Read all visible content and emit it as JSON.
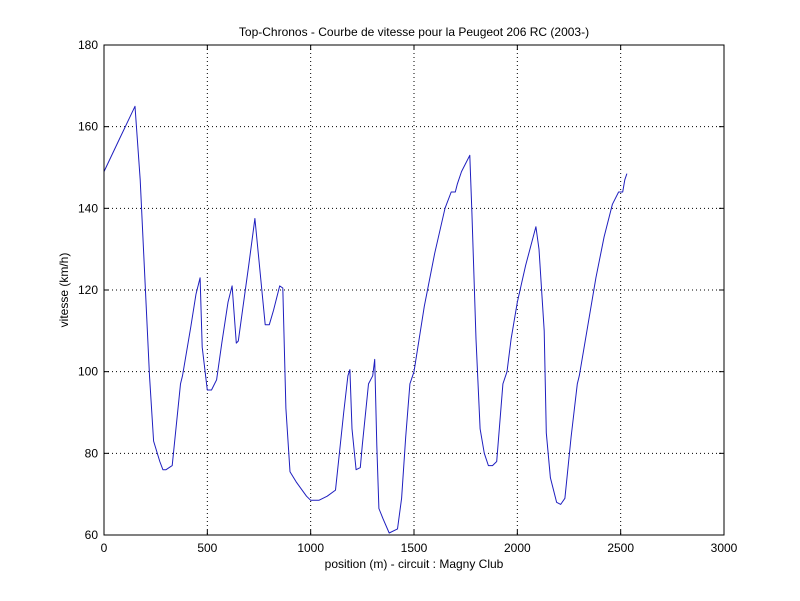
{
  "chart_data": {
    "type": "line",
    "title": "Top-Chronos - Courbe de vitesse pour la Peugeot 206 RC (2003-)",
    "xlabel": "position (m) - circuit : Magny Club",
    "ylabel": "vitesse (km/h)",
    "xlim": [
      0,
      3000
    ],
    "ylim": [
      60,
      180
    ],
    "xticks": [
      0,
      500,
      1000,
      1500,
      2000,
      2500,
      3000
    ],
    "yticks": [
      60,
      80,
      100,
      120,
      140,
      160,
      180
    ],
    "grid": true,
    "colors": {
      "line": "#1f1fbf",
      "axis": "#000000",
      "grid": "#000000"
    },
    "series": [
      {
        "x": [
          0,
          75,
          150,
          175,
          220,
          240,
          270,
          285,
          300,
          330,
          370,
          380,
          420,
          445,
          465,
          475,
          500,
          520,
          545,
          570,
          600,
          620,
          640,
          650,
          670,
          700,
          730,
          780,
          800,
          820,
          850,
          865,
          880,
          900,
          930,
          980,
          1000,
          1040,
          1080,
          1120,
          1160,
          1180,
          1190,
          1200,
          1220,
          1240,
          1250,
          1280,
          1300,
          1310,
          1320,
          1330,
          1350,
          1380,
          1420,
          1440,
          1460,
          1480,
          1500,
          1550,
          1600,
          1650,
          1680,
          1700,
          1710,
          1730,
          1750,
          1770,
          1780,
          1800,
          1820,
          1840,
          1860,
          1880,
          1900,
          1930,
          1950,
          1970,
          2000,
          2040,
          2090,
          2105,
          2130,
          2140,
          2160,
          2190,
          2210,
          2230,
          2260,
          2290,
          2300,
          2340,
          2380,
          2420,
          2460,
          2490,
          2510,
          2520,
          2530
        ],
        "y": [
          149,
          157,
          165,
          147,
          99,
          83,
          78,
          76,
          76,
          77,
          97,
          99,
          111,
          119,
          123,
          106,
          95.5,
          95.5,
          98,
          107,
          117,
          121,
          107,
          107.5,
          115,
          126,
          137.5,
          111.5,
          111.5,
          115,
          121,
          120.5,
          91,
          75.5,
          73,
          69.5,
          68.5,
          68.5,
          69.5,
          71,
          90,
          99,
          100.5,
          86,
          76,
          76.5,
          82,
          97,
          99,
          103,
          82,
          66.5,
          64,
          60.5,
          61.5,
          69,
          84,
          97,
          100,
          116,
          129,
          140,
          144,
          144,
          146,
          149,
          151,
          153,
          139,
          108,
          86,
          80,
          77,
          77,
          78,
          97,
          100,
          108,
          117,
          126,
          135.5,
          130,
          110,
          85,
          74,
          68,
          67.5,
          69,
          84,
          97,
          99,
          111,
          123,
          133,
          141,
          144,
          144,
          147,
          148.5
        ]
      }
    ]
  }
}
